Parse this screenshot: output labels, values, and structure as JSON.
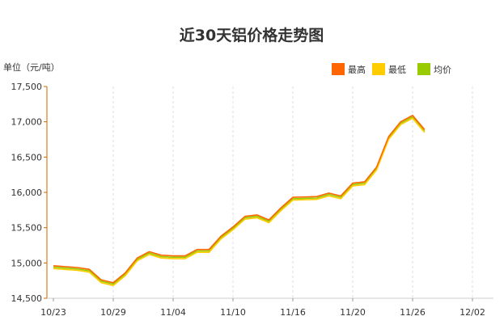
{
  "chart_data": {
    "type": "line",
    "title": "近30天铝价格走势图",
    "ylabel": "单位（元/吨）",
    "xlabel": "",
    "ylim": [
      14500,
      17500
    ],
    "yticks": [
      14500,
      15000,
      15500,
      16000,
      16500,
      17000,
      17500
    ],
    "ytick_labels": [
      "14,500",
      "15,000",
      "15,500",
      "16,000",
      "16,500",
      "17,000",
      "17,500"
    ],
    "x_tick_labels": [
      "10/23",
      "10/29",
      "11/04",
      "11/10",
      "11/16",
      "11/20",
      "11/26",
      "12/02"
    ],
    "x_tick_indices": [
      0,
      5,
      10,
      15,
      20,
      25,
      30,
      35
    ],
    "x_count": 37,
    "grid": "vertical-dashed",
    "legend_position": "top-right",
    "series": [
      {
        "name": "最高",
        "color": "#ff6600",
        "values": [
          14960,
          14935,
          14910,
          14760,
          14720,
          14860,
          15070,
          15160,
          15110,
          15100,
          15100,
          15190,
          15190,
          15380,
          15510,
          15660,
          15680,
          15610,
          15780,
          15930,
          15940,
          15990,
          15950,
          16130,
          16150,
          16360,
          16790,
          17000,
          17090,
          16890
        ]
      },
      {
        "name": "最低",
        "color": "#ffcc00",
        "values": [
          14920,
          14895,
          14870,
          14720,
          14680,
          14820,
          15030,
          15120,
          15070,
          15060,
          15060,
          15150,
          15150,
          15340,
          15470,
          15620,
          15640,
          15570,
          15740,
          15890,
          15900,
          15950,
          15910,
          16090,
          16110,
          16320,
          16750,
          16960,
          17050,
          16850
        ]
      },
      {
        "name": "均价",
        "color": "#99cc00",
        "values": [
          14940,
          14915,
          14890,
          14740,
          14700,
          14840,
          15050,
          15140,
          15090,
          15080,
          15080,
          15170,
          15170,
          15360,
          15490,
          15640,
          15660,
          15590,
          15760,
          15910,
          15920,
          15970,
          15930,
          16110,
          16130,
          16340,
          16770,
          16980,
          17070,
          16870
        ]
      }
    ],
    "series_x_indices": [
      0,
      2,
      3,
      4,
      5,
      6,
      7,
      8,
      9,
      10,
      11,
      12,
      13,
      14,
      15,
      16,
      17,
      18,
      19,
      20,
      22,
      23,
      24,
      25,
      26,
      27,
      28,
      29,
      30,
      31
    ]
  }
}
